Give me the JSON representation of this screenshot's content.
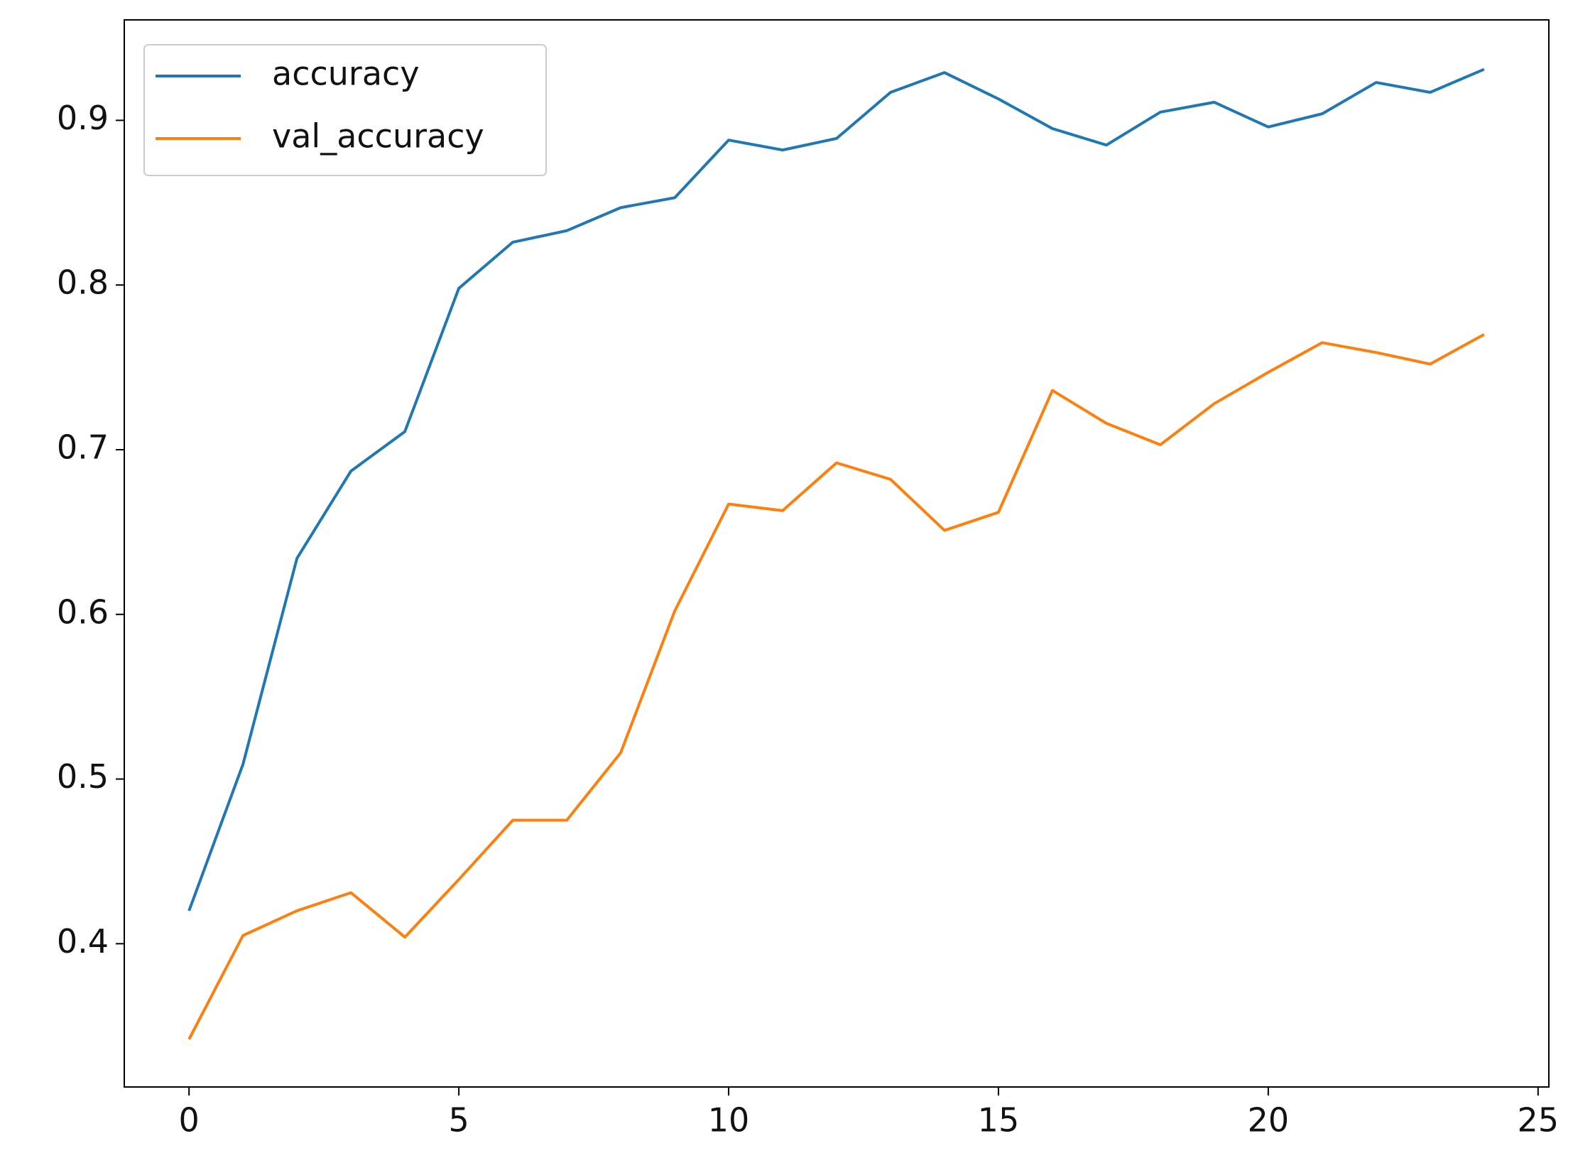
{
  "chart_data": {
    "type": "line",
    "x": [
      0,
      1,
      2,
      3,
      4,
      5,
      6,
      7,
      8,
      9,
      10,
      11,
      12,
      13,
      14,
      15,
      16,
      17,
      18,
      19,
      20,
      21,
      22,
      23,
      24
    ],
    "series": [
      {
        "name": "accuracy",
        "color": "#1f77b4",
        "values": [
          0.42,
          0.509,
          0.634,
          0.687,
          0.711,
          0.798,
          0.826,
          0.833,
          0.847,
          0.853,
          0.888,
          0.882,
          0.889,
          0.917,
          0.929,
          0.913,
          0.895,
          0.885,
          0.905,
          0.911,
          0.896,
          0.904,
          0.923,
          0.917,
          0.931
        ]
      },
      {
        "name": "val_accuracy",
        "color": "#ff7f0e",
        "values": [
          0.342,
          0.405,
          0.42,
          0.431,
          0.404,
          0.439,
          0.475,
          0.475,
          0.516,
          0.602,
          0.667,
          0.663,
          0.692,
          0.682,
          0.651,
          0.662,
          0.736,
          0.716,
          0.703,
          0.728,
          0.747,
          0.765,
          0.759,
          0.752,
          0.77
        ]
      }
    ],
    "xlim": [
      -1.2,
      25.2
    ],
    "xticks": [
      0,
      5,
      10,
      15,
      20,
      25
    ],
    "ylim": [
      0.313,
      0.961
    ],
    "yticks": [
      0.4,
      0.5,
      0.6,
      0.7,
      0.8,
      0.9
    ],
    "legend": "upper left"
  }
}
